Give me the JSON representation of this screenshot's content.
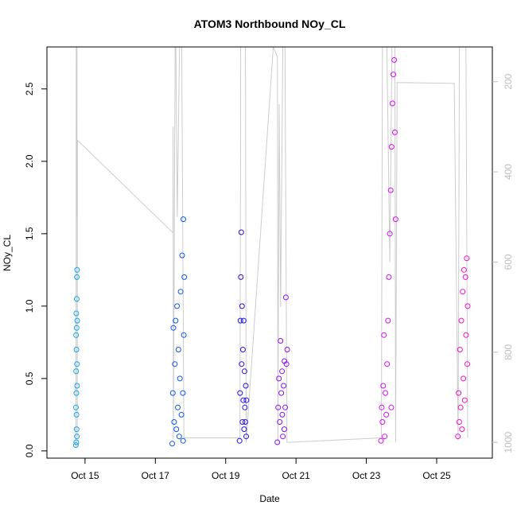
{
  "chart_data": {
    "type": "scatter",
    "title": "ATOM3 Northbound NOy_CL",
    "xlabel": "Date",
    "ylabel": "NOy_CL",
    "x_axis": {
      "type": "date",
      "range": [
        "2017-10-13T22:00",
        "2017-10-26T14:00"
      ],
      "ticks": [
        {
          "value": "2017-10-15",
          "label": "Oct 15"
        },
        {
          "value": "2017-10-17",
          "label": "Oct 17"
        },
        {
          "value": "2017-10-19",
          "label": "Oct 19"
        },
        {
          "value": "2017-10-21",
          "label": "Oct 21"
        },
        {
          "value": "2017-10-23",
          "label": "Oct 23"
        },
        {
          "value": "2017-10-25",
          "label": "Oct 25"
        }
      ]
    },
    "y_axis": {
      "range": [
        -0.05,
        2.79
      ],
      "ticks": [
        {
          "value": 0.0,
          "label": "0.0"
        },
        {
          "value": 0.5,
          "label": "0.5"
        },
        {
          "value": 1.0,
          "label": "1.0"
        },
        {
          "value": 1.5,
          "label": "1.5"
        },
        {
          "value": 2.0,
          "label": "2.0"
        },
        {
          "value": 2.5,
          "label": "2.5"
        }
      ]
    },
    "y2_axis": {
      "quantity": "pressure",
      "reversed": true,
      "range": [
        1035,
        123
      ],
      "color": "#bdbdbd",
      "ticks": [
        {
          "value": 200,
          "label": "200"
        },
        {
          "value": 400,
          "label": "400"
        },
        {
          "value": 600,
          "label": "600"
        },
        {
          "value": 800,
          "label": "800"
        },
        {
          "value": 1000,
          "label": "1000"
        }
      ]
    },
    "grid": false,
    "legend": "none",
    "pressure_color": "#cccccc",
    "marker": "open-circle",
    "series": [
      {
        "start": "2017-10-14T17:45",
        "end": "2017-10-14T18:40",
        "color": "#0da4f5",
        "points": [
          [
            0.0,
            0.04
          ],
          [
            0.06,
            0.3
          ],
          [
            0.12,
            0.8
          ],
          [
            0.2,
            0.55
          ],
          [
            0.28,
            0.95
          ],
          [
            0.36,
            0.4
          ],
          [
            0.44,
            0.7
          ],
          [
            0.52,
            0.15
          ],
          [
            0.6,
            0.85
          ],
          [
            0.68,
            1.05
          ],
          [
            0.76,
            1.2
          ],
          [
            0.84,
            0.6
          ],
          [
            0.92,
            1.25
          ],
          [
            1.0,
            0.9
          ],
          [
            0.3,
            0.06
          ],
          [
            0.5,
            0.25
          ],
          [
            0.7,
            0.1
          ],
          [
            0.88,
            0.45
          ]
        ]
      },
      {
        "start": "2017-10-17T11:30",
        "end": "2017-10-17T19:45",
        "color": "#0e56f0",
        "points": [
          [
            0.0,
            0.05
          ],
          [
            0.05,
            0.4
          ],
          [
            0.1,
            0.85
          ],
          [
            0.16,
            0.2
          ],
          [
            0.22,
            0.6
          ],
          [
            0.28,
            0.9
          ],
          [
            0.34,
            0.15
          ],
          [
            0.4,
            1.0
          ],
          [
            0.46,
            0.3
          ],
          [
            0.52,
            0.7
          ],
          [
            0.58,
            0.1
          ],
          [
            0.64,
            0.5
          ],
          [
            0.7,
            1.1
          ],
          [
            0.76,
            0.25
          ],
          [
            0.82,
            1.35
          ],
          [
            0.88,
            0.4
          ],
          [
            0.92,
            1.6
          ],
          [
            0.96,
            0.8
          ],
          [
            1.0,
            1.2
          ],
          [
            0.9,
            0.07
          ]
        ]
      },
      {
        "start": "2017-10-19T09:30",
        "end": "2017-10-19T14:10",
        "color": "#2410f2",
        "points": [
          [
            0.0,
            0.07
          ],
          [
            0.06,
            0.4
          ],
          [
            0.12,
            0.9
          ],
          [
            0.18,
            1.2
          ],
          [
            0.24,
            1.51
          ],
          [
            0.3,
            0.6
          ],
          [
            0.36,
            1.0
          ],
          [
            0.42,
            0.2
          ],
          [
            0.48,
            0.7
          ],
          [
            0.54,
            0.35
          ],
          [
            0.6,
            0.9
          ],
          [
            0.66,
            0.15
          ],
          [
            0.72,
            0.55
          ],
          [
            0.78,
            0.3
          ],
          [
            0.84,
            0.2
          ],
          [
            0.9,
            0.45
          ],
          [
            0.96,
            0.1
          ],
          [
            1.0,
            0.35
          ]
        ]
      },
      {
        "start": "2017-10-20T11:15",
        "end": "2017-10-20T18:00",
        "color": "#8a10f2",
        "points": [
          [
            0.0,
            0.06
          ],
          [
            0.08,
            0.3
          ],
          [
            0.16,
            0.5
          ],
          [
            0.24,
            0.2
          ],
          [
            0.32,
            0.76
          ],
          [
            0.4,
            0.4
          ],
          [
            0.48,
            0.55
          ],
          [
            0.56,
            0.1
          ],
          [
            0.64,
            0.45
          ],
          [
            0.72,
            0.62
          ],
          [
            0.8,
            0.3
          ],
          [
            0.86,
            1.06
          ],
          [
            0.92,
            0.6
          ],
          [
            1.0,
            0.7
          ],
          [
            0.5,
            0.25
          ],
          [
            0.7,
            0.15
          ]
        ]
      },
      {
        "start": "2017-10-23T10:00",
        "end": "2017-10-23T20:00",
        "color": "#d70cf5",
        "points": [
          [
            0.0,
            0.07
          ],
          [
            0.05,
            0.3
          ],
          [
            0.1,
            0.2
          ],
          [
            0.15,
            0.45
          ],
          [
            0.2,
            0.8
          ],
          [
            0.25,
            0.1
          ],
          [
            0.3,
            0.4
          ],
          [
            0.36,
            0.25
          ],
          [
            0.42,
            0.6
          ],
          [
            0.48,
            0.9
          ],
          [
            0.54,
            1.2
          ],
          [
            0.6,
            1.5
          ],
          [
            0.66,
            1.8
          ],
          [
            0.72,
            2.1
          ],
          [
            0.78,
            2.4
          ],
          [
            0.84,
            2.6
          ],
          [
            0.9,
            2.7
          ],
          [
            0.95,
            2.2
          ],
          [
            1.0,
            1.6
          ],
          [
            0.7,
            0.3
          ]
        ]
      },
      {
        "start": "2017-10-25T14:30",
        "end": "2017-10-25T21:10",
        "color": "#f80cc9",
        "points": [
          [
            0.0,
            0.1
          ],
          [
            0.07,
            0.4
          ],
          [
            0.14,
            0.2
          ],
          [
            0.21,
            0.7
          ],
          [
            0.28,
            0.3
          ],
          [
            0.35,
            0.9
          ],
          [
            0.42,
            0.15
          ],
          [
            0.49,
            1.1
          ],
          [
            0.56,
            0.5
          ],
          [
            0.63,
            1.25
          ],
          [
            0.7,
            0.35
          ],
          [
            0.77,
            1.2
          ],
          [
            0.84,
            0.8
          ],
          [
            0.9,
            1.33
          ],
          [
            0.96,
            0.6
          ],
          [
            1.0,
            1.0
          ]
        ]
      }
    ],
    "pressure_trace": [
      [
        "2017-10-14T17:50",
        1010
      ],
      [
        "2017-10-14T17:55",
        600
      ],
      [
        "2017-10-14T18:00",
        123
      ],
      [
        "2017-10-14T18:10",
        123
      ],
      [
        "2017-10-14T18:20",
        500
      ],
      [
        "2017-10-14T18:30",
        123
      ],
      [
        "2017-10-14T18:40",
        990
      ],
      [
        "2017-10-14T18:50",
        330
      ],
      [
        "2017-10-17T12:00",
        535
      ],
      [
        "2017-10-17T12:10",
        300
      ],
      [
        "2017-10-17T12:20",
        995
      ],
      [
        "2017-10-17T13:30",
        123
      ],
      [
        "2017-10-17T14:00",
        123
      ],
      [
        "2017-10-17T15:00",
        500
      ],
      [
        "2017-10-17T16:30",
        123
      ],
      [
        "2017-10-17T18:00",
        123
      ],
      [
        "2017-10-17T19:30",
        990
      ],
      [
        "2017-10-19T09:45",
        990
      ],
      [
        "2017-10-19T10:15",
        123
      ],
      [
        "2017-10-19T11:00",
        123
      ],
      [
        "2017-10-19T12:00",
        123
      ],
      [
        "2017-10-19T13:30",
        123
      ],
      [
        "2017-10-19T14:00",
        1000
      ],
      [
        "2017-10-20T08:30",
        123
      ],
      [
        "2017-10-20T11:20",
        145
      ],
      [
        "2017-10-20T11:40",
        1000
      ],
      [
        "2017-10-20T12:30",
        250
      ],
      [
        "2017-10-20T13:30",
        700
      ],
      [
        "2017-10-20T15:00",
        123
      ],
      [
        "2017-10-20T16:30",
        123
      ],
      [
        "2017-10-20T17:50",
        1000
      ],
      [
        "2017-10-23T10:15",
        990
      ],
      [
        "2017-10-23T11:00",
        123
      ],
      [
        "2017-10-23T12:30",
        123
      ],
      [
        "2017-10-23T14:00",
        123
      ],
      [
        "2017-10-23T16:00",
        600
      ],
      [
        "2017-10-23T17:30",
        123
      ],
      [
        "2017-10-23T19:30",
        123
      ],
      [
        "2017-10-23T20:00",
        1000
      ],
      [
        "2017-10-23T21:00",
        202
      ],
      [
        "2017-10-25T12:00",
        204
      ],
      [
        "2017-10-25T14:40",
        995
      ],
      [
        "2017-10-25T15:30",
        123
      ],
      [
        "2017-10-25T17:00",
        123
      ],
      [
        "2017-10-25T18:30",
        123
      ],
      [
        "2017-10-25T20:00",
        123
      ],
      [
        "2017-10-25T21:10",
        990
      ]
    ]
  }
}
